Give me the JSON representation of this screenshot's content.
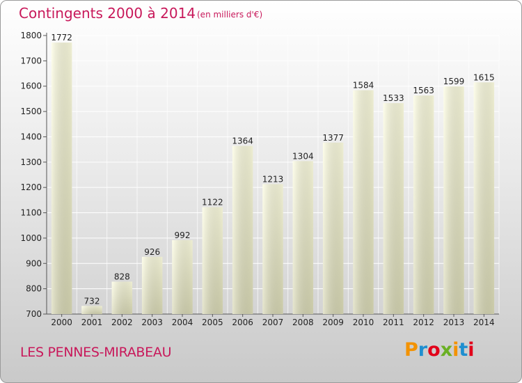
{
  "header": {
    "title": "Contingents 2000 à 2014",
    "subtitle": "(en milliers d'€)"
  },
  "footer": {
    "commune": "LES PENNES-MIRABEAU",
    "logo_text": "Proxiti"
  },
  "colors": {
    "title": "#c8185a",
    "bar_top": "#fdfde0",
    "bar_bottom": "#d8d8b4",
    "logo": [
      "#f39200",
      "#1f8fd0",
      "#e2001a",
      "#6ab023",
      "#f39200",
      "#1f8fd0",
      "#e2001a"
    ]
  },
  "chart_data": {
    "type": "bar",
    "categories": [
      "2000",
      "2001",
      "2002",
      "2003",
      "2004",
      "2005",
      "2006",
      "2007",
      "2008",
      "2009",
      "2010",
      "2011",
      "2012",
      "2013",
      "2014"
    ],
    "values": [
      1772,
      732,
      828,
      926,
      992,
      1122,
      1364,
      1213,
      1304,
      1377,
      1584,
      1533,
      1563,
      1599,
      1615
    ],
    "ylim": [
      700,
      1800
    ],
    "yticks": [
      700,
      800,
      900,
      1000,
      1100,
      1200,
      1300,
      1400,
      1500,
      1600,
      1700,
      1800
    ],
    "grid": true,
    "data_labels": true
  }
}
